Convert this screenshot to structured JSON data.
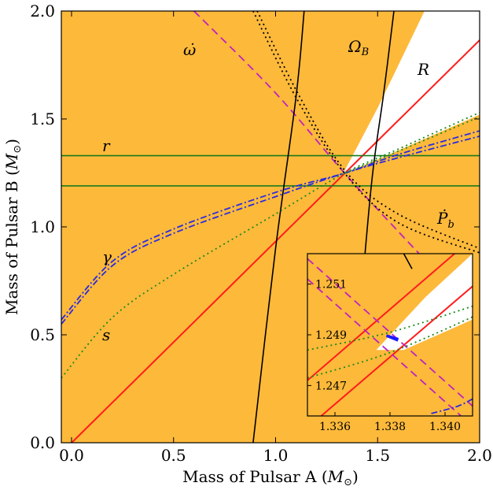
{
  "colors": {
    "excluded": "#fdb93a",
    "r_line": "#1a7a1a",
    "s_curve": "#1a8a1a",
    "R_line": "#ff1c1c",
    "omega_dot": "#c020c0",
    "gamma": "#2a2ae0",
    "Pb_dot": "#000000",
    "shapiro_sigma": "#000000",
    "solution": "#1a1aff"
  },
  "chart_data": {
    "type": "line",
    "title": "",
    "xlabel_text": "Mass of Pulsar A (",
    "ylabel_text": "Mass of Pulsar B (",
    "unit_symbol": "M",
    "unit_subscript": "⊙",
    "xlim": [
      -0.05,
      2.0
    ],
    "ylim": [
      0.0,
      2.0
    ],
    "xticks": [
      0.0,
      0.5,
      1.0,
      1.5,
      2.0
    ],
    "xtick_labels": [
      "0.0",
      "0.5",
      "1.0",
      "1.5",
      "2.0"
    ],
    "yticks": [
      0.0,
      0.5,
      1.0,
      1.5,
      2.0
    ],
    "ytick_labels": [
      "0.0",
      "0.5",
      "1.0",
      "1.5",
      "2.0"
    ],
    "labels": {
      "omega_dot": "ω̇",
      "Omega_B": "Ω",
      "Omega_B_sub": "B",
      "R": "R",
      "r": "r",
      "gamma": "γ",
      "s": "s",
      "Pb_dot": "Ṗ",
      "Pb_sub": "b"
    },
    "series": [
      {
        "name": "R",
        "points": [
          [
            -0.05,
            -0.047
          ],
          [
            2.0,
            1.865
          ]
        ]
      },
      {
        "name": "r",
        "points": [
          [
            -0.05,
            1.19
          ],
          [
            2.0,
            1.19
          ]
        ]
      },
      {
        "name": "r",
        "points": [
          [
            -0.05,
            1.33
          ],
          [
            2.0,
            1.33
          ]
        ]
      },
      {
        "name": "omega_dot",
        "points": [
          [
            0.6,
            2.0
          ],
          [
            1.0,
            1.62
          ],
          [
            1.3379,
            1.2489
          ],
          [
            1.6,
            0.98
          ],
          [
            1.75,
            0.83
          ]
        ]
      },
      {
        "name": "Omega_B",
        "points": [
          [
            0.89,
            0.0
          ],
          [
            1.0,
            0.9
          ],
          [
            1.1,
            1.6
          ],
          [
            1.14,
            2.0
          ]
        ]
      },
      {
        "name": "Omega_B",
        "points": [
          [
            1.4,
            0.45
          ],
          [
            1.47,
            1.2
          ],
          [
            1.53,
            1.62
          ],
          [
            1.58,
            2.0
          ]
        ]
      },
      {
        "name": "Pb_dot",
        "points": [
          [
            0.89,
            2.0
          ],
          [
            1.1,
            1.6
          ],
          [
            1.3379,
            1.2489
          ],
          [
            1.6,
            1.02
          ],
          [
            2.0,
            0.88
          ]
        ]
      },
      {
        "name": "Pb_dot",
        "points": [
          [
            0.91,
            2.0
          ],
          [
            1.12,
            1.6
          ],
          [
            1.345,
            1.255
          ],
          [
            1.6,
            1.06
          ],
          [
            2.0,
            0.9
          ]
        ]
      },
      {
        "name": "gamma",
        "points": [
          [
            -0.05,
            0.55
          ],
          [
            0.2,
            0.82
          ],
          [
            0.5,
            0.97
          ],
          [
            1.0,
            1.14
          ],
          [
            1.3379,
            1.2489
          ],
          [
            1.6,
            1.32
          ],
          [
            2.0,
            1.42
          ]
        ]
      },
      {
        "name": "gamma",
        "points": [
          [
            -0.05,
            0.57
          ],
          [
            0.2,
            0.84
          ],
          [
            0.5,
            0.99
          ],
          [
            1.0,
            1.16
          ],
          [
            1.3379,
            1.2489
          ],
          [
            1.6,
            1.335
          ],
          [
            2.0,
            1.445
          ]
        ]
      },
      {
        "name": "s",
        "points": [
          [
            -0.05,
            0.3
          ],
          [
            0.2,
            0.58
          ],
          [
            0.5,
            0.78
          ],
          [
            1.0,
            1.06
          ],
          [
            1.3379,
            1.2489
          ],
          [
            1.6,
            1.36
          ],
          [
            2.0,
            1.53
          ]
        ]
      },
      {
        "name": "s",
        "points": [
          [
            1.3379,
            1.2489
          ],
          [
            1.6,
            1.35
          ],
          [
            2.0,
            1.51
          ]
        ]
      }
    ],
    "allowed_region": [
      [
        1.33,
        1.245
      ],
      [
        1.5,
        1.55
      ],
      [
        1.73,
        2.0
      ],
      [
        2.0,
        2.0
      ],
      [
        2.0,
        1.52
      ],
      [
        1.52,
        1.32
      ]
    ],
    "inset": {
      "xlim": [
        1.335,
        1.341
      ],
      "ylim": [
        1.2458,
        1.2522
      ],
      "xticks": [
        1.336,
        1.338,
        1.34
      ],
      "xtick_labels": [
        "1.336",
        "1.338",
        "1.340"
      ],
      "yticks": [
        1.247,
        1.249,
        1.251
      ],
      "ytick_labels": [
        "1.247",
        "1.249",
        "1.251"
      ],
      "solution": [
        1.3381,
        1.2489
      ]
    }
  }
}
